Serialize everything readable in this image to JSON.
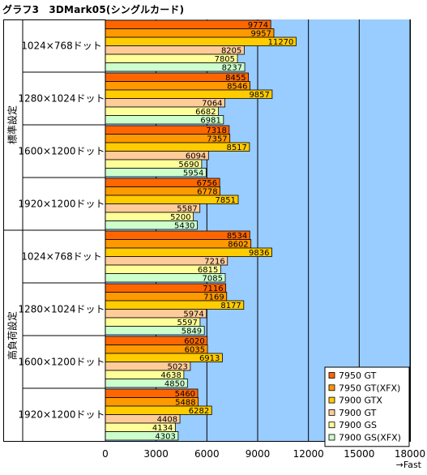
{
  "title": "グラフ3　3DMark05(シングルカード)",
  "chart_data": {
    "type": "bar",
    "orientation": "horizontal",
    "title": "グラフ3　3DMark05(シングルカード)",
    "xlim": [
      0,
      18000
    ],
    "xticks": [
      0,
      3000,
      6000,
      9000,
      12000,
      15000,
      18000
    ],
    "xlabel": "→Fast",
    "groups": [
      {
        "name": "標準設定",
        "categories": [
          "1024×768ドット",
          "1280×1024ドット",
          "1600×1200ドット",
          "1920×1200ドット"
        ]
      },
      {
        "name": "高負荷設定",
        "categories": [
          "1024×768ドット",
          "1280×1024ドット",
          "1600×1200ドット",
          "1920×1200ドット"
        ]
      }
    ],
    "series": [
      {
        "name": "7950 GT",
        "color": "#FF6600",
        "values": [
          9774,
          8455,
          7318,
          6756,
          8534,
          7116,
          6020,
          5460
        ]
      },
      {
        "name": "7950 GT(XFX)",
        "color": "#FF9900",
        "values": [
          9957,
          8546,
          7357,
          6778,
          8602,
          7169,
          6035,
          5488
        ]
      },
      {
        "name": "7900 GTX",
        "color": "#FFCC00",
        "values": [
          11270,
          9857,
          8517,
          7851,
          9836,
          8177,
          6913,
          6282
        ]
      },
      {
        "name": "7900 GT",
        "color": "#FFCC99",
        "values": [
          8205,
          7064,
          6094,
          5587,
          7216,
          5974,
          5023,
          4408
        ]
      },
      {
        "name": "7900 GS",
        "color": "#FFFF99",
        "values": [
          7805,
          6682,
          5690,
          5200,
          6815,
          5597,
          4638,
          4134
        ]
      },
      {
        "name": "7900 GS(XFX)",
        "color": "#CCFFCC",
        "values": [
          8237,
          6981,
          5954,
          5430,
          7085,
          5849,
          4850,
          4303
        ]
      }
    ],
    "plot_background": "#99CCFF",
    "grid": true,
    "legend_position": "bottom-right"
  }
}
